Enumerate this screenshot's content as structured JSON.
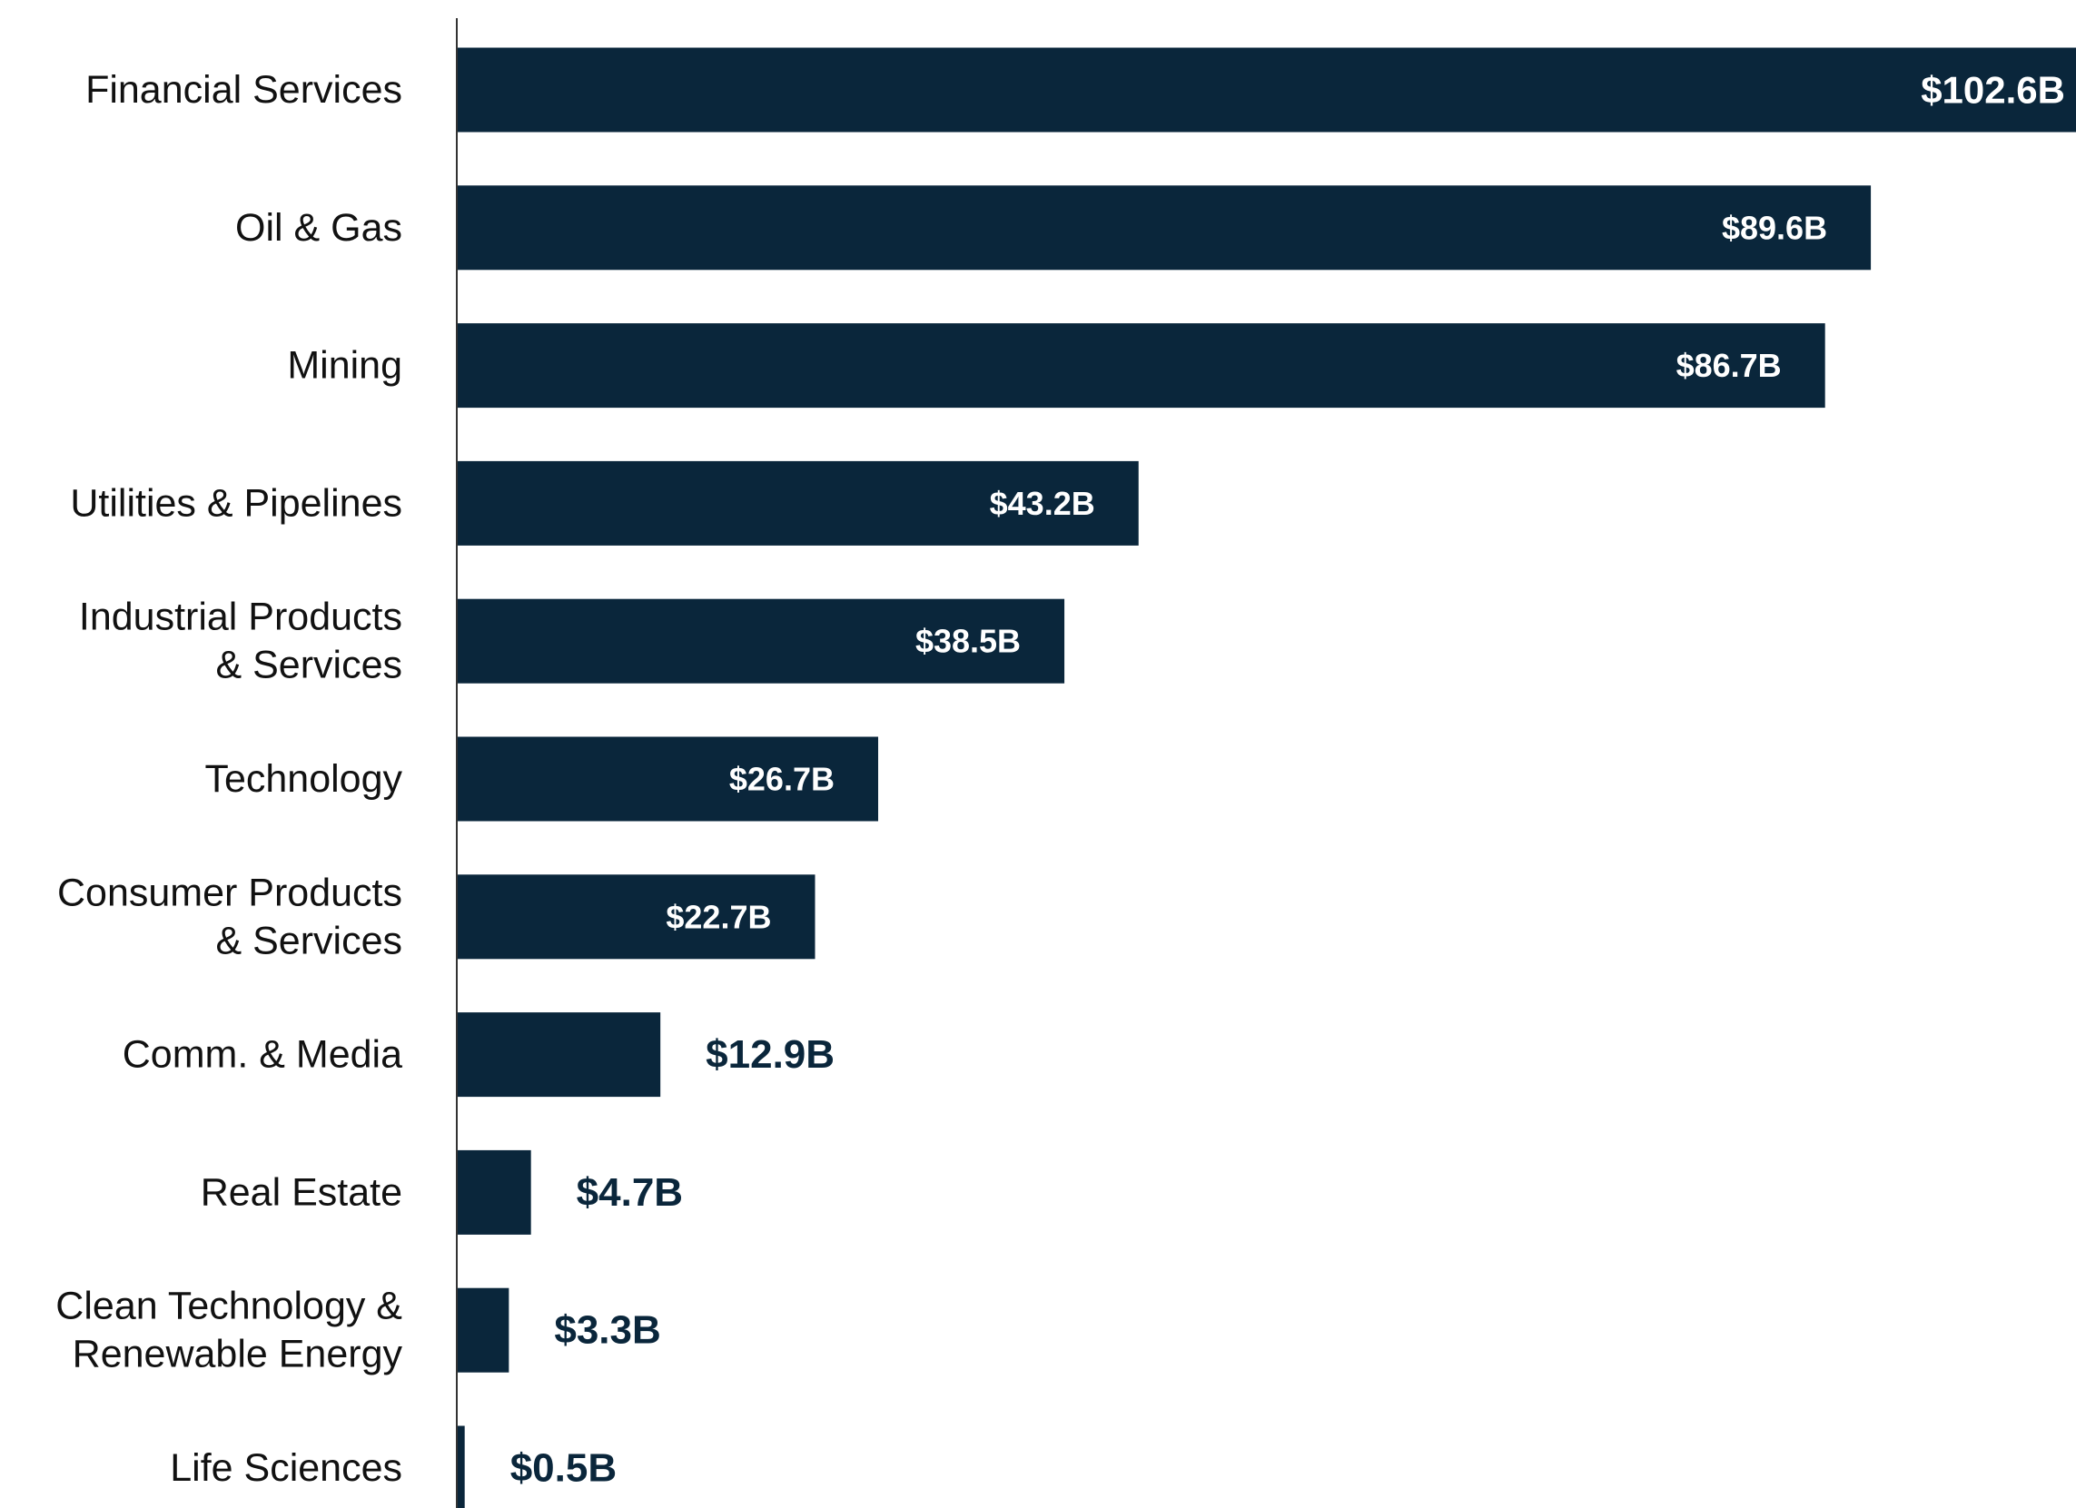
{
  "chart_data": {
    "type": "bar",
    "orientation": "horizontal",
    "title": "",
    "xlabel": "",
    "ylabel": "",
    "grid": false,
    "legend": "none",
    "xlim": [
      0,
      102.6
    ],
    "categories": [
      [
        "Financial Services"
      ],
      [
        "Oil & Gas"
      ],
      [
        "Mining"
      ],
      [
        "Utilities & Pipelines"
      ],
      [
        "Industrial Products",
        "& Services"
      ],
      [
        "Technology"
      ],
      [
        "Consumer Products",
        "& Services"
      ],
      [
        "Comm. & Media"
      ],
      [
        "Real Estate"
      ],
      [
        "Clean Technology &",
        "Renewable Energy"
      ],
      [
        "Life Sciences"
      ]
    ],
    "values": [
      102.6,
      89.6,
      86.7,
      43.2,
      38.5,
      26.7,
      22.7,
      12.9,
      4.7,
      3.3,
      0.5
    ],
    "value_labels": [
      "$102.6B",
      "$89.6B",
      "$86.7B",
      "$43.2B",
      "$38.5B",
      "$26.7B",
      "$22.7B",
      "$12.9B",
      "$4.7B",
      "$3.3B",
      "$0.5B"
    ],
    "colors": {
      "bar": "#0a263b",
      "label_inside": "#ffffff",
      "label_outside": "#0a263b",
      "category_text": "#111111",
      "axis": "#333333"
    }
  }
}
